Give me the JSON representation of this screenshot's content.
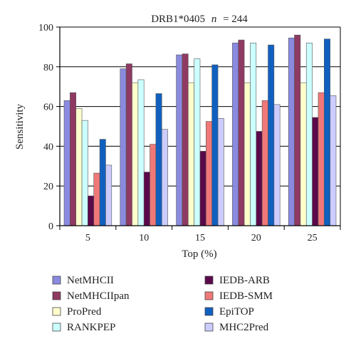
{
  "chart_data": {
    "type": "bar",
    "title_main": "DRB1*0405",
    "title_n": "n",
    "title_eq": "= 244",
    "xlabel": "Top (%)",
    "ylabel": "Sensitivity",
    "ylim": [
      0,
      100
    ],
    "yticks": [
      "0",
      "20",
      "40",
      "60",
      "80",
      "100"
    ],
    "categories": [
      "5",
      "10",
      "15",
      "20",
      "25"
    ],
    "grid": true,
    "legend_position": "bottom",
    "series": [
      {
        "name": "NetMHCII",
        "color": "#8a8ae0",
        "values": [
          63,
          79,
          86,
          92,
          94.5
        ]
      },
      {
        "name": "NetMHCIIpan",
        "color": "#8f3a62",
        "values": [
          67,
          81.5,
          86.5,
          93.5,
          96
        ]
      },
      {
        "name": "ProPred",
        "color": "#ffffcc",
        "values": [
          59,
          72,
          72,
          72,
          72
        ]
      },
      {
        "name": "RANKPEP",
        "color": "#ccffff",
        "values": [
          53,
          73.5,
          84,
          92,
          92
        ]
      },
      {
        "name": "IEDB-ARB",
        "color": "#5a0a4a",
        "values": [
          15,
          27,
          37.5,
          47.5,
          54.5
        ]
      },
      {
        "name": "IEDB-SMM",
        "color": "#f07878",
        "values": [
          26.5,
          41,
          52.5,
          63,
          67
        ]
      },
      {
        "name": "EpiTOP",
        "color": "#1060c0",
        "values": [
          43.5,
          66.5,
          81,
          91,
          94
        ]
      },
      {
        "name": "MHC2Pred",
        "color": "#ccccff",
        "values": [
          30.5,
          48.5,
          54,
          61,
          65.5
        ]
      }
    ]
  }
}
